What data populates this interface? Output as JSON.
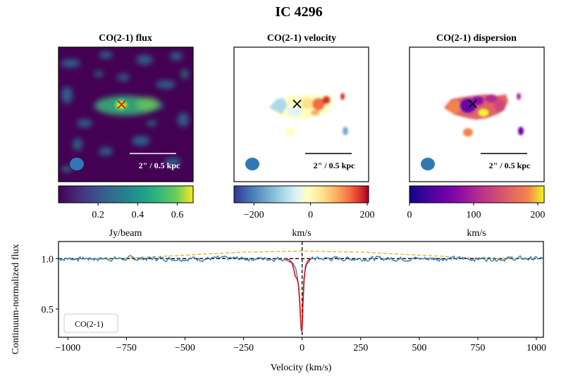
{
  "figure": {
    "title": "IC 4296"
  },
  "panels": [
    {
      "title": "CO(2-1) flux",
      "scalebar_label": "2\" / 0.5 kpc",
      "marker": "x",
      "marker_color": "#e01010"
    },
    {
      "title": "CO(2-1) velocity",
      "scalebar_label": "2\" / 0.5 kpc",
      "marker": "x",
      "marker_color": "#000000"
    },
    {
      "title": "CO(2-1) dispersion",
      "scalebar_label": "2\" / 0.5 kpc",
      "marker": "x",
      "marker_color": "#000000"
    }
  ],
  "colorbars": [
    {
      "name": "flux",
      "colormap": "viridis",
      "range": [
        0.0,
        0.68
      ],
      "ticks": [
        0.2,
        0.4,
        0.6
      ],
      "tick_labels": [
        "0.2",
        "0.4",
        "0.6"
      ],
      "label": "Jy/beam"
    },
    {
      "name": "velocity",
      "colormap": "RdYlBu_r",
      "range": [
        -270,
        205
      ],
      "ticks": [
        -200,
        0,
        200
      ],
      "tick_labels": [
        "−200",
        "0",
        "200"
      ],
      "label": "km/s"
    },
    {
      "name": "dispersion",
      "colormap": "plasma",
      "range": [
        0,
        210
      ],
      "ticks": [
        0,
        100,
        200
      ],
      "tick_labels": [
        "0",
        "100",
        "200"
      ],
      "label": "km/s"
    }
  ],
  "chart_data": {
    "type": "line",
    "xlabel": "Velocity (km/s)",
    "ylabel": "Continuum-normalized flux",
    "xlim": [
      -1040,
      1030
    ],
    "ylim": [
      0.22,
      1.17
    ],
    "xticks": [
      -1000,
      -750,
      -500,
      -250,
      0,
      250,
      500,
      750,
      1000
    ],
    "xtick_labels": [
      "−1000",
      "−750",
      "−500",
      "−250",
      "0",
      "250",
      "500",
      "750",
      "1000"
    ],
    "yticks": [
      0.5,
      1.0
    ],
    "ytick_labels": [
      "0.5",
      "1.0"
    ],
    "legend": {
      "location": "lower-left",
      "entries": [
        "CO(2-1)"
      ]
    },
    "reference_lines": [
      {
        "orientation": "horizontal",
        "value": 1.0,
        "style": "dashed",
        "color": "#000000"
      },
      {
        "orientation": "vertical",
        "value": 0,
        "style": "dashed",
        "color": "#000000"
      }
    ],
    "series": [
      {
        "name": "CO(2-1)",
        "role": "observed spectrum",
        "color": "#3a7fb8",
        "baseline": 1.0,
        "noise_rms": 0.025,
        "x_range": [
          -1040,
          1030
        ],
        "absorption_dip": {
          "x": [
            -80,
            -40,
            -25,
            -15,
            -8,
            -3,
            0,
            4,
            10,
            20,
            40
          ],
          "y": [
            1.0,
            0.96,
            0.88,
            0.72,
            0.45,
            0.28,
            0.3,
            0.55,
            0.85,
            0.95,
            1.0
          ]
        }
      },
      {
        "name": "absorption model",
        "color": "#dd1111",
        "x": [
          -75,
          -55,
          -42,
          -35,
          -30,
          -25,
          -22,
          -18,
          -14,
          -10,
          -7,
          -4,
          -2,
          0,
          3,
          8,
          15,
          25,
          40
        ],
        "y": [
          1.0,
          0.99,
          0.95,
          0.89,
          0.83,
          0.81,
          0.8,
          0.77,
          0.7,
          0.58,
          0.42,
          0.3,
          0.28,
          0.32,
          0.55,
          0.8,
          0.93,
          0.98,
          1.0
        ]
      },
      {
        "name": "emission profile",
        "color": "#f5a623",
        "style": "dashed",
        "x": [
          -1000,
          -750,
          -500,
          -250,
          0,
          250,
          500,
          750,
          1000
        ],
        "y": [
          1.0,
          1.005,
          1.035,
          1.065,
          1.075,
          1.065,
          1.035,
          1.005,
          1.0
        ]
      }
    ]
  }
}
